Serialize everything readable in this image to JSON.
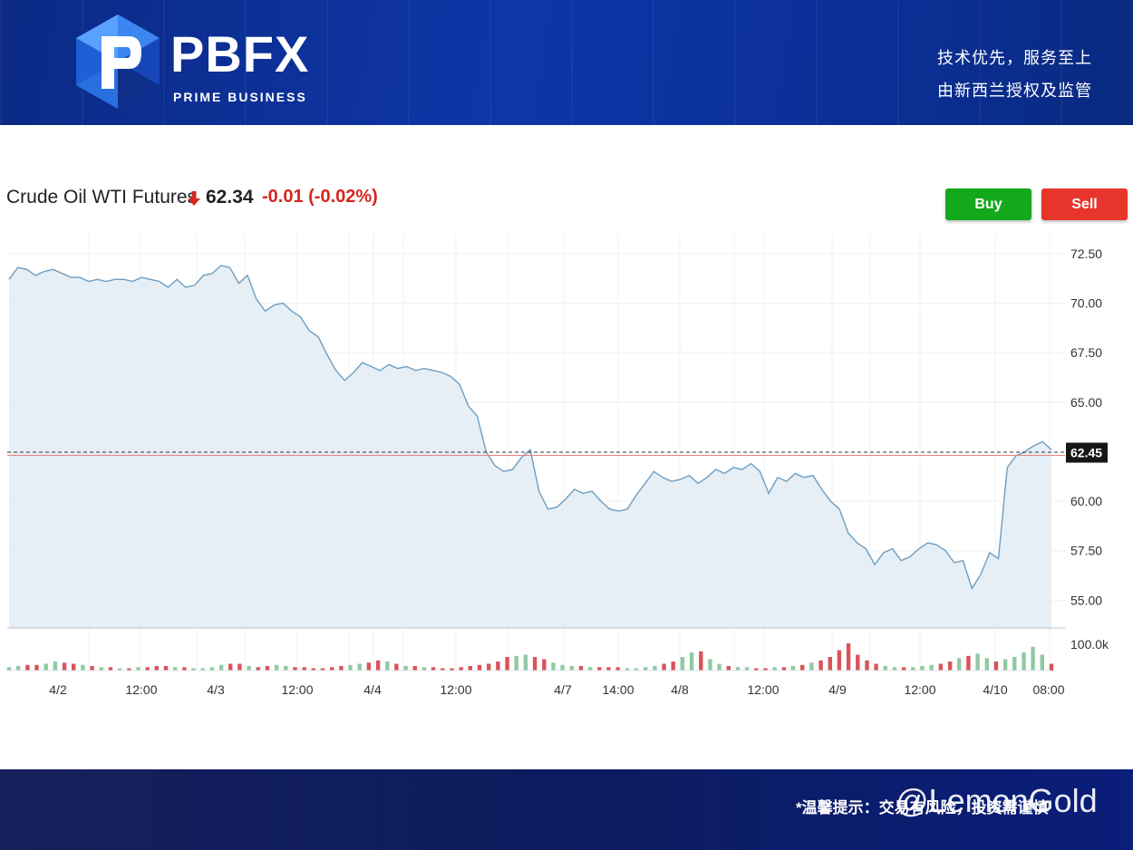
{
  "header": {
    "brand": "PBFX",
    "tagline": "PRIME BUSINESS",
    "slogan_1": "技术优先，服务至上",
    "slogan_2": "由新西兰授权及监管"
  },
  "quote": {
    "instrument": "Crude Oil WTI Futures",
    "price": "62.34",
    "change": "-0.01 (-0.02%)",
    "direction_icon": "arrow-down-icon",
    "down_color": "#d6261e"
  },
  "actions": {
    "buy_label": "Buy",
    "sell_label": "Sell",
    "buy_color": "#14a81c",
    "sell_color": "#e8352b"
  },
  "footer": {
    "note": "*温馨提示：交易有风险，投资需谨慎",
    "watermark": "@LemonGold"
  },
  "chart_data": {
    "type": "line",
    "y_ticks": [
      "72.50",
      "70.00",
      "67.50",
      "65.00",
      "62.45",
      "60.00",
      "57.50",
      "55.00"
    ],
    "ylim": [
      53.6,
      73.5
    ],
    "volume_tick": "100.0k",
    "current_value": 62.45,
    "x_tick_labels": [
      "4/2",
      "12:00",
      "4/3",
      "12:00",
      "4/4",
      "12:00",
      "4/7",
      "14:00",
      "4/8",
      "12:00",
      "4/9",
      "12:00",
      "4/10",
      "08:00"
    ],
    "series": [
      {
        "values": [
          71.2,
          71.8,
          71.7,
          71.4,
          71.6,
          71.7,
          71.5,
          71.3,
          71.3,
          71.1,
          71.2,
          71.1,
          71.2,
          71.2,
          71.1,
          71.3,
          71.2,
          71.1,
          70.8,
          71.2,
          70.8,
          70.9,
          71.4,
          71.5,
          71.9,
          71.8,
          71.0,
          71.4,
          70.2,
          69.6,
          69.9,
          70.0,
          69.6,
          69.3,
          68.6,
          68.3,
          67.4,
          66.6,
          66.1,
          66.5,
          67.0,
          66.8,
          66.6,
          66.9,
          66.7,
          66.8,
          66.6,
          66.7,
          66.6,
          66.5,
          66.3,
          65.9,
          64.8,
          64.3,
          62.5,
          61.8,
          61.5,
          61.6,
          62.2,
          62.6,
          60.5,
          59.6,
          59.7,
          60.1,
          60.6,
          60.4,
          60.5,
          60.0,
          59.6,
          59.5,
          59.6,
          60.3,
          60.9,
          61.5,
          61.2,
          61.0,
          61.1,
          61.3,
          60.9,
          61.2,
          61.6,
          61.4,
          61.7,
          61.6,
          61.9,
          61.5,
          60.4,
          61.2,
          61.0,
          61.4,
          61.2,
          61.3,
          60.6,
          60.0,
          59.6,
          58.4,
          57.9,
          57.6,
          56.8,
          57.4,
          57.6,
          57.0,
          57.2,
          57.6,
          57.9,
          57.8,
          57.5,
          56.9,
          57.0,
          55.6,
          56.3,
          57.4,
          57.1,
          61.7,
          62.3,
          62.5,
          62.8,
          63.0,
          62.6
        ]
      }
    ],
    "volume": {
      "values": [
        3,
        4,
        5,
        5,
        6,
        8,
        7,
        6,
        5,
        4,
        3,
        3,
        2,
        2,
        3,
        3,
        4,
        4,
        3,
        3,
        2,
        2,
        3,
        5,
        6,
        6,
        4,
        3,
        4,
        5,
        4,
        3,
        3,
        2,
        2,
        3,
        4,
        5,
        6,
        7,
        9,
        8,
        6,
        4,
        4,
        3,
        3,
        2,
        2,
        3,
        4,
        5,
        6,
        8,
        12,
        13,
        14,
        12,
        10,
        7,
        5,
        4,
        4,
        3,
        3,
        3,
        3,
        2,
        2,
        3,
        4,
        6,
        8,
        12,
        16,
        17,
        10,
        6,
        4,
        3,
        3,
        2,
        2,
        3,
        3,
        4,
        5,
        7,
        9,
        12,
        18,
        24,
        14,
        9,
        6,
        4,
        3,
        3,
        3,
        4,
        5,
        6,
        8,
        11,
        13,
        15,
        11,
        8,
        10,
        12,
        16,
        21,
        14,
        6
      ],
      "up_color": "#8fc9a2",
      "down_color": "#d9535b"
    }
  }
}
